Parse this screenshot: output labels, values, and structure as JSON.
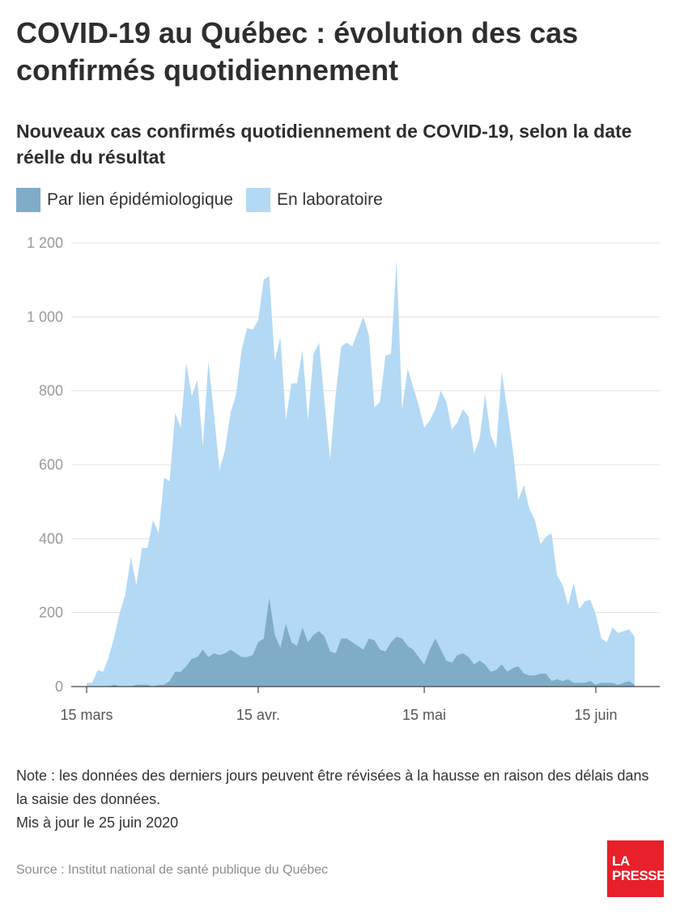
{
  "header": {
    "title": "COVID-19 au Québec : évolution des cas confirmés quotidiennement",
    "subtitle": "Nouveaux cas confirmés quotidiennement de COVID-19, selon la date réelle du résultat"
  },
  "legend": {
    "items": [
      {
        "label": "Par lien épidémiologique",
        "color": "#7fadc8"
      },
      {
        "label": "En laboratoire",
        "color": "#b3d9f5"
      }
    ]
  },
  "chart_data": {
    "type": "area",
    "stacked": true,
    "x_start": "2020-03-15",
    "x_end": "2020-06-23",
    "x_ticks": [
      "15 mars",
      "15 avr.",
      "15 mai",
      "15 juin"
    ],
    "x_tick_dates": [
      "2020-03-15",
      "2020-04-15",
      "2020-05-15",
      "2020-06-15"
    ],
    "ylim": [
      0,
      1200
    ],
    "y_ticks": [
      "0",
      "200",
      "400",
      "600",
      "800",
      "1 000",
      "1 200"
    ],
    "grid": true,
    "series": [
      {
        "name": "Par lien épidémiologique",
        "color": "#7fadc8",
        "values": [
          0,
          0,
          0,
          0,
          0,
          5,
          0,
          0,
          0,
          5,
          5,
          5,
          0,
          5,
          5,
          15,
          40,
          40,
          55,
          75,
          80,
          100,
          80,
          90,
          85,
          90,
          100,
          90,
          80,
          80,
          85,
          120,
          130,
          240,
          140,
          105,
          170,
          120,
          110,
          160,
          120,
          140,
          150,
          135,
          95,
          90,
          130,
          130,
          120,
          110,
          100,
          130,
          125,
          100,
          95,
          120,
          135,
          130,
          110,
          100,
          80,
          60,
          100,
          130,
          100,
          70,
          65,
          85,
          90,
          80,
          60,
          70,
          60,
          40,
          45,
          60,
          40,
          50,
          55,
          35,
          30,
          30,
          35,
          35,
          15,
          20,
          15,
          20,
          10,
          10,
          10,
          15,
          5,
          10,
          10,
          10,
          5,
          10,
          15,
          5
        ]
      },
      {
        "name": "En laboratoire",
        "color": "#b3d9f5",
        "values": [
          10,
          10,
          45,
          40,
          80,
          130,
          200,
          250,
          350,
          270,
          370,
          370,
          450,
          410,
          560,
          540,
          700,
          660,
          820,
          710,
          750,
          550,
          800,
          650,
          500,
          550,
          640,
          700,
          830,
          890,
          880,
          870,
          970,
          870,
          740,
          840,
          550,
          700,
          710,
          750,
          600,
          760,
          780,
          630,
          520,
          700,
          790,
          800,
          800,
          850,
          900,
          820,
          630,
          670,
          800,
          780,
          1020,
          620,
          750,
          710,
          680,
          640,
          620,
          620,
          700,
          700,
          630,
          630,
          660,
          650,
          570,
          600,
          730,
          640,
          600,
          790,
          710,
          590,
          450,
          510,
          450,
          420,
          350,
          370,
          400,
          280,
          260,
          200,
          270,
          200,
          220,
          220,
          190,
          120,
          110,
          150,
          140,
          140,
          140,
          130
        ]
      }
    ]
  },
  "note": {
    "line1": "Note : les données des derniers jours peuvent être révisées à la hausse en raison des délais dans la saisie des données.",
    "line2": "Mis à jour le 25 juin 2020"
  },
  "source": "Source : Institut national de santé publique du Québec",
  "logo": {
    "line1": "LA",
    "line2": "PRESSE",
    "color": "#e8202a"
  }
}
